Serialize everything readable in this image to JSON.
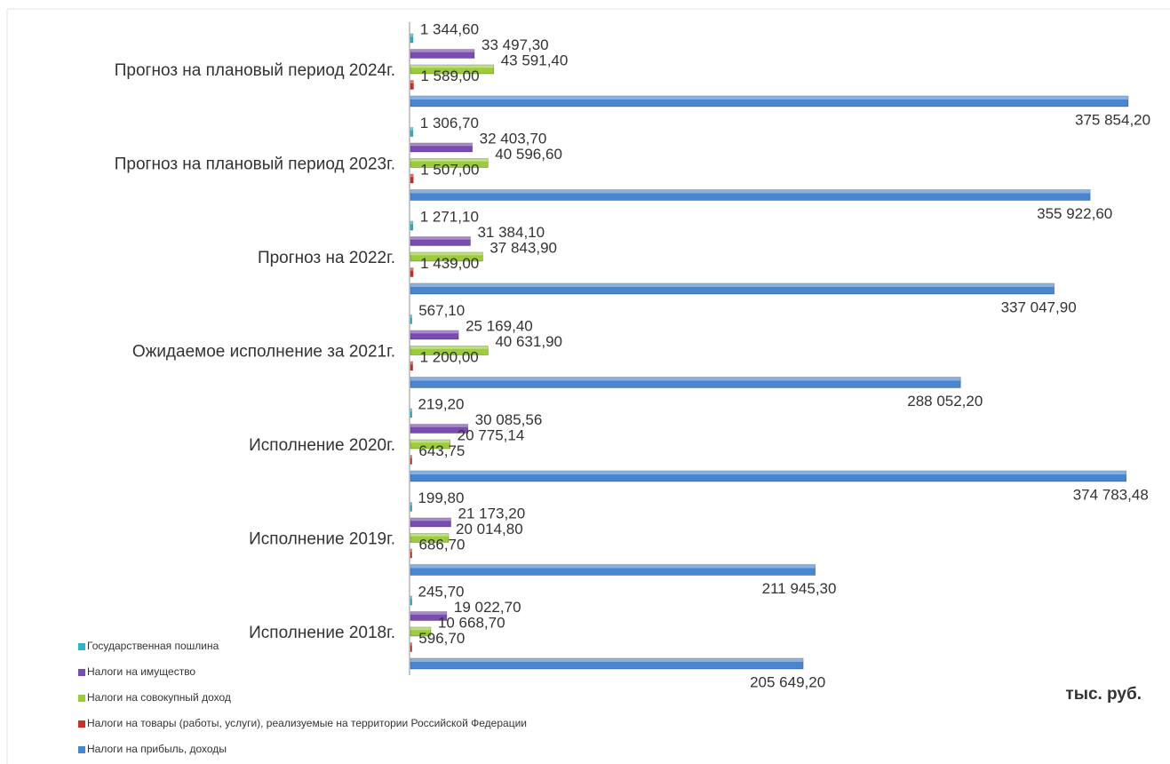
{
  "chart_data": {
    "type": "bar",
    "orientation": "horizontal",
    "categories": [
      "Прогноз на плановый период 2024г.",
      "Прогноз на плановый период 2023г.",
      "Прогноз на 2022г.",
      "Ожидаемое исполнение за  2021г.",
      "Исполнение   2020г.",
      "Исполнение 2019г.",
      "Исполнение 2018г."
    ],
    "unit_label": "тыс. руб.",
    "series": [
      {
        "name": "Государственная пошлина",
        "color": "#2fb3c6",
        "values": [
          1344.6,
          1306.7,
          1271.1,
          567.1,
          219.2,
          199.8,
          245.7
        ],
        "value_labels": [
          "1 344,60",
          "1 306,70",
          "1 271,10",
          "567,10",
          "219,20",
          "199,80",
          "245,70"
        ]
      },
      {
        "name": "Налоги на имущество",
        "color": "#7a4bb0",
        "values": [
          33497.3,
          32403.7,
          31384.1,
          25169.4,
          30085.56,
          21173.2,
          19022.7
        ],
        "value_labels": [
          "33 497,30",
          "32 403,70",
          "31 384,10",
          "25 169,40",
          "30 085,56",
          "21 173,20",
          "19 022,70"
        ]
      },
      {
        "name": "Налоги на совокупный доход",
        "color": "#9ccc3c",
        "values": [
          43591.4,
          40596.6,
          37843.9,
          40631.9,
          20775.14,
          20014.8,
          10668.7
        ],
        "value_labels": [
          "43 591,40",
          "40 596,60",
          "37 843,90",
          "40 631,90",
          "20 775,14",
          "20 014,80",
          "10 668,70"
        ]
      },
      {
        "name": "Налоги на товары (работы, услуги), реализуемые на территории Российской Федерации",
        "color": "#c9302c",
        "values": [
          1589,
          1507,
          1439,
          1200,
          643.75,
          686.7,
          596.7
        ],
        "value_labels": [
          "1 589,00",
          "1 507,00",
          "1 439,00",
          "1 200,00",
          "643,75",
          "686,70",
          "596,70"
        ]
      },
      {
        "name": "Налоги на прибыль, доходы",
        "color": "#4a86d0",
        "values": [
          375854.2,
          355922.6,
          337047.9,
          288052.2,
          374783.48,
          211945.3,
          205649.2
        ],
        "value_labels": [
          "375 854,20",
          "355 922,60",
          "337 047,90",
          "288 052,20",
          "374 783,48",
          "211 945,30",
          "205 649,20"
        ]
      }
    ]
  }
}
